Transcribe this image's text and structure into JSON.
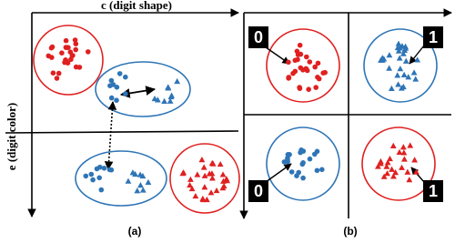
{
  "axes": {
    "x_label": "c (digit shape)",
    "y_label": "e (digit color)"
  },
  "panels": [
    {
      "caption": "(a)"
    },
    {
      "caption": "(b)"
    }
  ],
  "thumbnails": [
    "0",
    "1",
    "0",
    "1"
  ]
}
